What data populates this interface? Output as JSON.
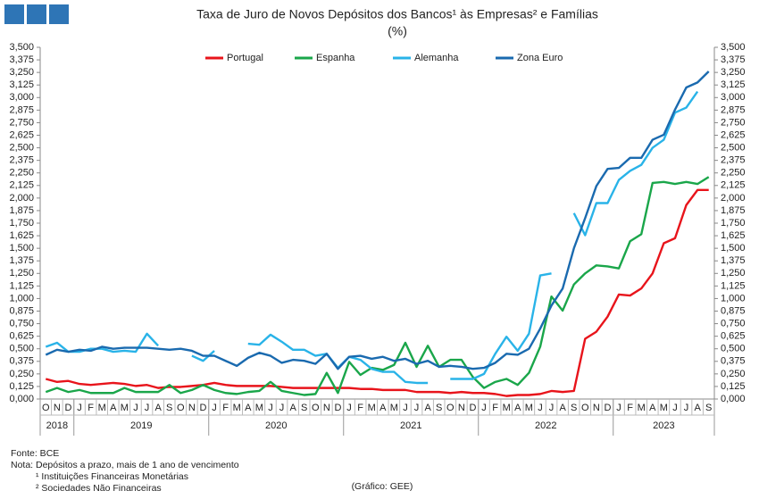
{
  "chart_data": {
    "type": "line",
    "title": "Taxa de Juro de Novos Depósitos dos Bancos¹ às Empresas² e Famílias",
    "subtitle": "(%)",
    "categories": [
      "O",
      "N",
      "D",
      "J",
      "F",
      "M",
      "A",
      "M",
      "J",
      "J",
      "A",
      "S",
      "O",
      "N",
      "D",
      "J",
      "F",
      "M",
      "A",
      "M",
      "J",
      "J",
      "A",
      "S",
      "O",
      "N",
      "D",
      "J",
      "F",
      "M",
      "A",
      "M",
      "J",
      "J",
      "A",
      "S",
      "O",
      "N",
      "D",
      "J",
      "F",
      "M",
      "A",
      "M",
      "J",
      "J",
      "A",
      "S",
      "O",
      "N",
      "D",
      "J",
      "F",
      "M",
      "A",
      "M",
      "J",
      "J",
      "A",
      "S"
    ],
    "year_labels": [
      "2018",
      "2019",
      "2020",
      "2021",
      "2022",
      "2023"
    ],
    "ylim": [
      0,
      3.5
    ],
    "yticks": [
      {
        "value": 0,
        "label": "0,000"
      },
      {
        "value": 0.125,
        "label": "0,125"
      },
      {
        "value": 0.25,
        "label": "0,250"
      },
      {
        "value": 0.375,
        "label": "0,375"
      },
      {
        "value": 0.5,
        "label": "0,500"
      },
      {
        "value": 0.625,
        "label": "0,625"
      },
      {
        "value": 0.75,
        "label": "0,750"
      },
      {
        "value": 0.875,
        "label": "0,875"
      },
      {
        "value": 1,
        "label": "1,000"
      },
      {
        "value": 1.125,
        "label": "1,125"
      },
      {
        "value": 1.25,
        "label": "1,250"
      },
      {
        "value": 1.375,
        "label": "1,375"
      },
      {
        "value": 1.5,
        "label": "1,500"
      },
      {
        "value": 1.625,
        "label": "1,625"
      },
      {
        "value": 1.75,
        "label": "1,750"
      },
      {
        "value": 1.875,
        "label": "1,875"
      },
      {
        "value": 2,
        "label": "2,000"
      },
      {
        "value": 2.125,
        "label": "2,125"
      },
      {
        "value": 2.25,
        "label": "2,250"
      },
      {
        "value": 2.375,
        "label": "2,375"
      },
      {
        "value": 2.5,
        "label": "2,500"
      },
      {
        "value": 2.625,
        "label": "2,625"
      },
      {
        "value": 2.75,
        "label": "2,750"
      },
      {
        "value": 2.875,
        "label": "2,875"
      },
      {
        "value": 3,
        "label": "3,000"
      },
      {
        "value": 3.125,
        "label": "3,125"
      },
      {
        "value": 3.25,
        "label": "3,250"
      },
      {
        "value": 3.375,
        "label": "3,375"
      },
      {
        "value": 3.5,
        "label": "3,500"
      }
    ],
    "series": [
      {
        "name": "Portugal",
        "color": "#e8141b",
        "values": [
          0.2,
          0.17,
          0.18,
          0.15,
          0.14,
          0.15,
          0.16,
          0.15,
          0.13,
          0.14,
          0.11,
          0.12,
          0.12,
          0.13,
          0.14,
          0.16,
          0.14,
          0.13,
          0.13,
          0.13,
          0.13,
          0.12,
          0.11,
          0.11,
          0.11,
          0.11,
          0.11,
          0.11,
          0.1,
          0.1,
          0.09,
          0.09,
          0.09,
          0.07,
          0.07,
          0.07,
          0.06,
          0.07,
          0.06,
          0.06,
          0.05,
          0.03,
          0.04,
          0.04,
          0.05,
          0.08,
          0.07,
          0.08,
          0.6,
          0.67,
          0.82,
          1.04,
          1.03,
          1.1,
          1.25,
          1.55,
          1.6,
          1.93,
          2.08,
          2.08
        ]
      },
      {
        "name": "Espanha",
        "color": "#1aa64a",
        "values": [
          0.07,
          0.11,
          0.07,
          0.09,
          0.06,
          0.06,
          0.06,
          0.11,
          0.07,
          0.07,
          0.07,
          0.14,
          0.06,
          0.09,
          0.14,
          0.09,
          0.06,
          0.05,
          0.07,
          0.08,
          0.17,
          0.08,
          0.06,
          0.04,
          0.05,
          0.26,
          0.06,
          0.37,
          0.24,
          0.31,
          0.29,
          0.34,
          0.56,
          0.32,
          0.53,
          0.32,
          0.39,
          0.39,
          0.22,
          0.11,
          0.17,
          0.2,
          0.14,
          0.26,
          0.52,
          1.02,
          0.88,
          1.14,
          1.25,
          1.33,
          1.32,
          1.3,
          1.57,
          1.64,
          2.15,
          2.16,
          2.14,
          2.16,
          2.14,
          2.21
        ]
      },
      {
        "name": "Alemanha",
        "color": "#29b3e8",
        "values": [
          0.52,
          0.56,
          0.47,
          0.47,
          0.5,
          0.5,
          0.47,
          0.48,
          0.47,
          0.65,
          0.53,
          null,
          null,
          0.43,
          0.38,
          0.48,
          null,
          null,
          0.55,
          0.54,
          0.64,
          0.57,
          0.49,
          0.49,
          0.43,
          0.45,
          0.31,
          0.42,
          0.39,
          0.3,
          0.27,
          0.27,
          0.17,
          0.16,
          0.16,
          null,
          0.2,
          0.2,
          0.2,
          0.25,
          0.45,
          0.62,
          0.48,
          0.65,
          1.23,
          1.25,
          null,
          1.85,
          1.63,
          1.95,
          1.95,
          2.18,
          2.27,
          2.33,
          2.5,
          2.58,
          2.85,
          2.9,
          3.06,
          null
        ]
      },
      {
        "name": "Zona Euro",
        "color": "#1a6aaf",
        "values": [
          0.44,
          0.49,
          0.47,
          0.49,
          0.48,
          0.52,
          0.5,
          0.51,
          0.51,
          0.51,
          0.5,
          0.49,
          0.5,
          0.48,
          0.43,
          0.43,
          0.38,
          0.33,
          0.41,
          0.46,
          0.43,
          0.36,
          0.39,
          0.38,
          0.35,
          0.45,
          0.3,
          0.42,
          0.43,
          0.4,
          0.42,
          0.38,
          0.4,
          0.35,
          0.38,
          0.32,
          0.33,
          0.32,
          0.3,
          0.31,
          0.36,
          0.45,
          0.44,
          0.5,
          0.7,
          0.93,
          1.1,
          1.5,
          1.8,
          2.12,
          2.29,
          2.3,
          2.4,
          2.4,
          2.58,
          2.63,
          2.88,
          3.1,
          3.15,
          3.26
        ]
      }
    ],
    "notes": [
      "Fonte: BCE",
      "Nota: Depósitos a prazo, mais de 1 ano de vencimento",
      "¹ Instituições Financeiras Monetárias",
      "² Sociedades Não Financeiras"
    ],
    "credit": "(Gráfico: GEE)"
  }
}
